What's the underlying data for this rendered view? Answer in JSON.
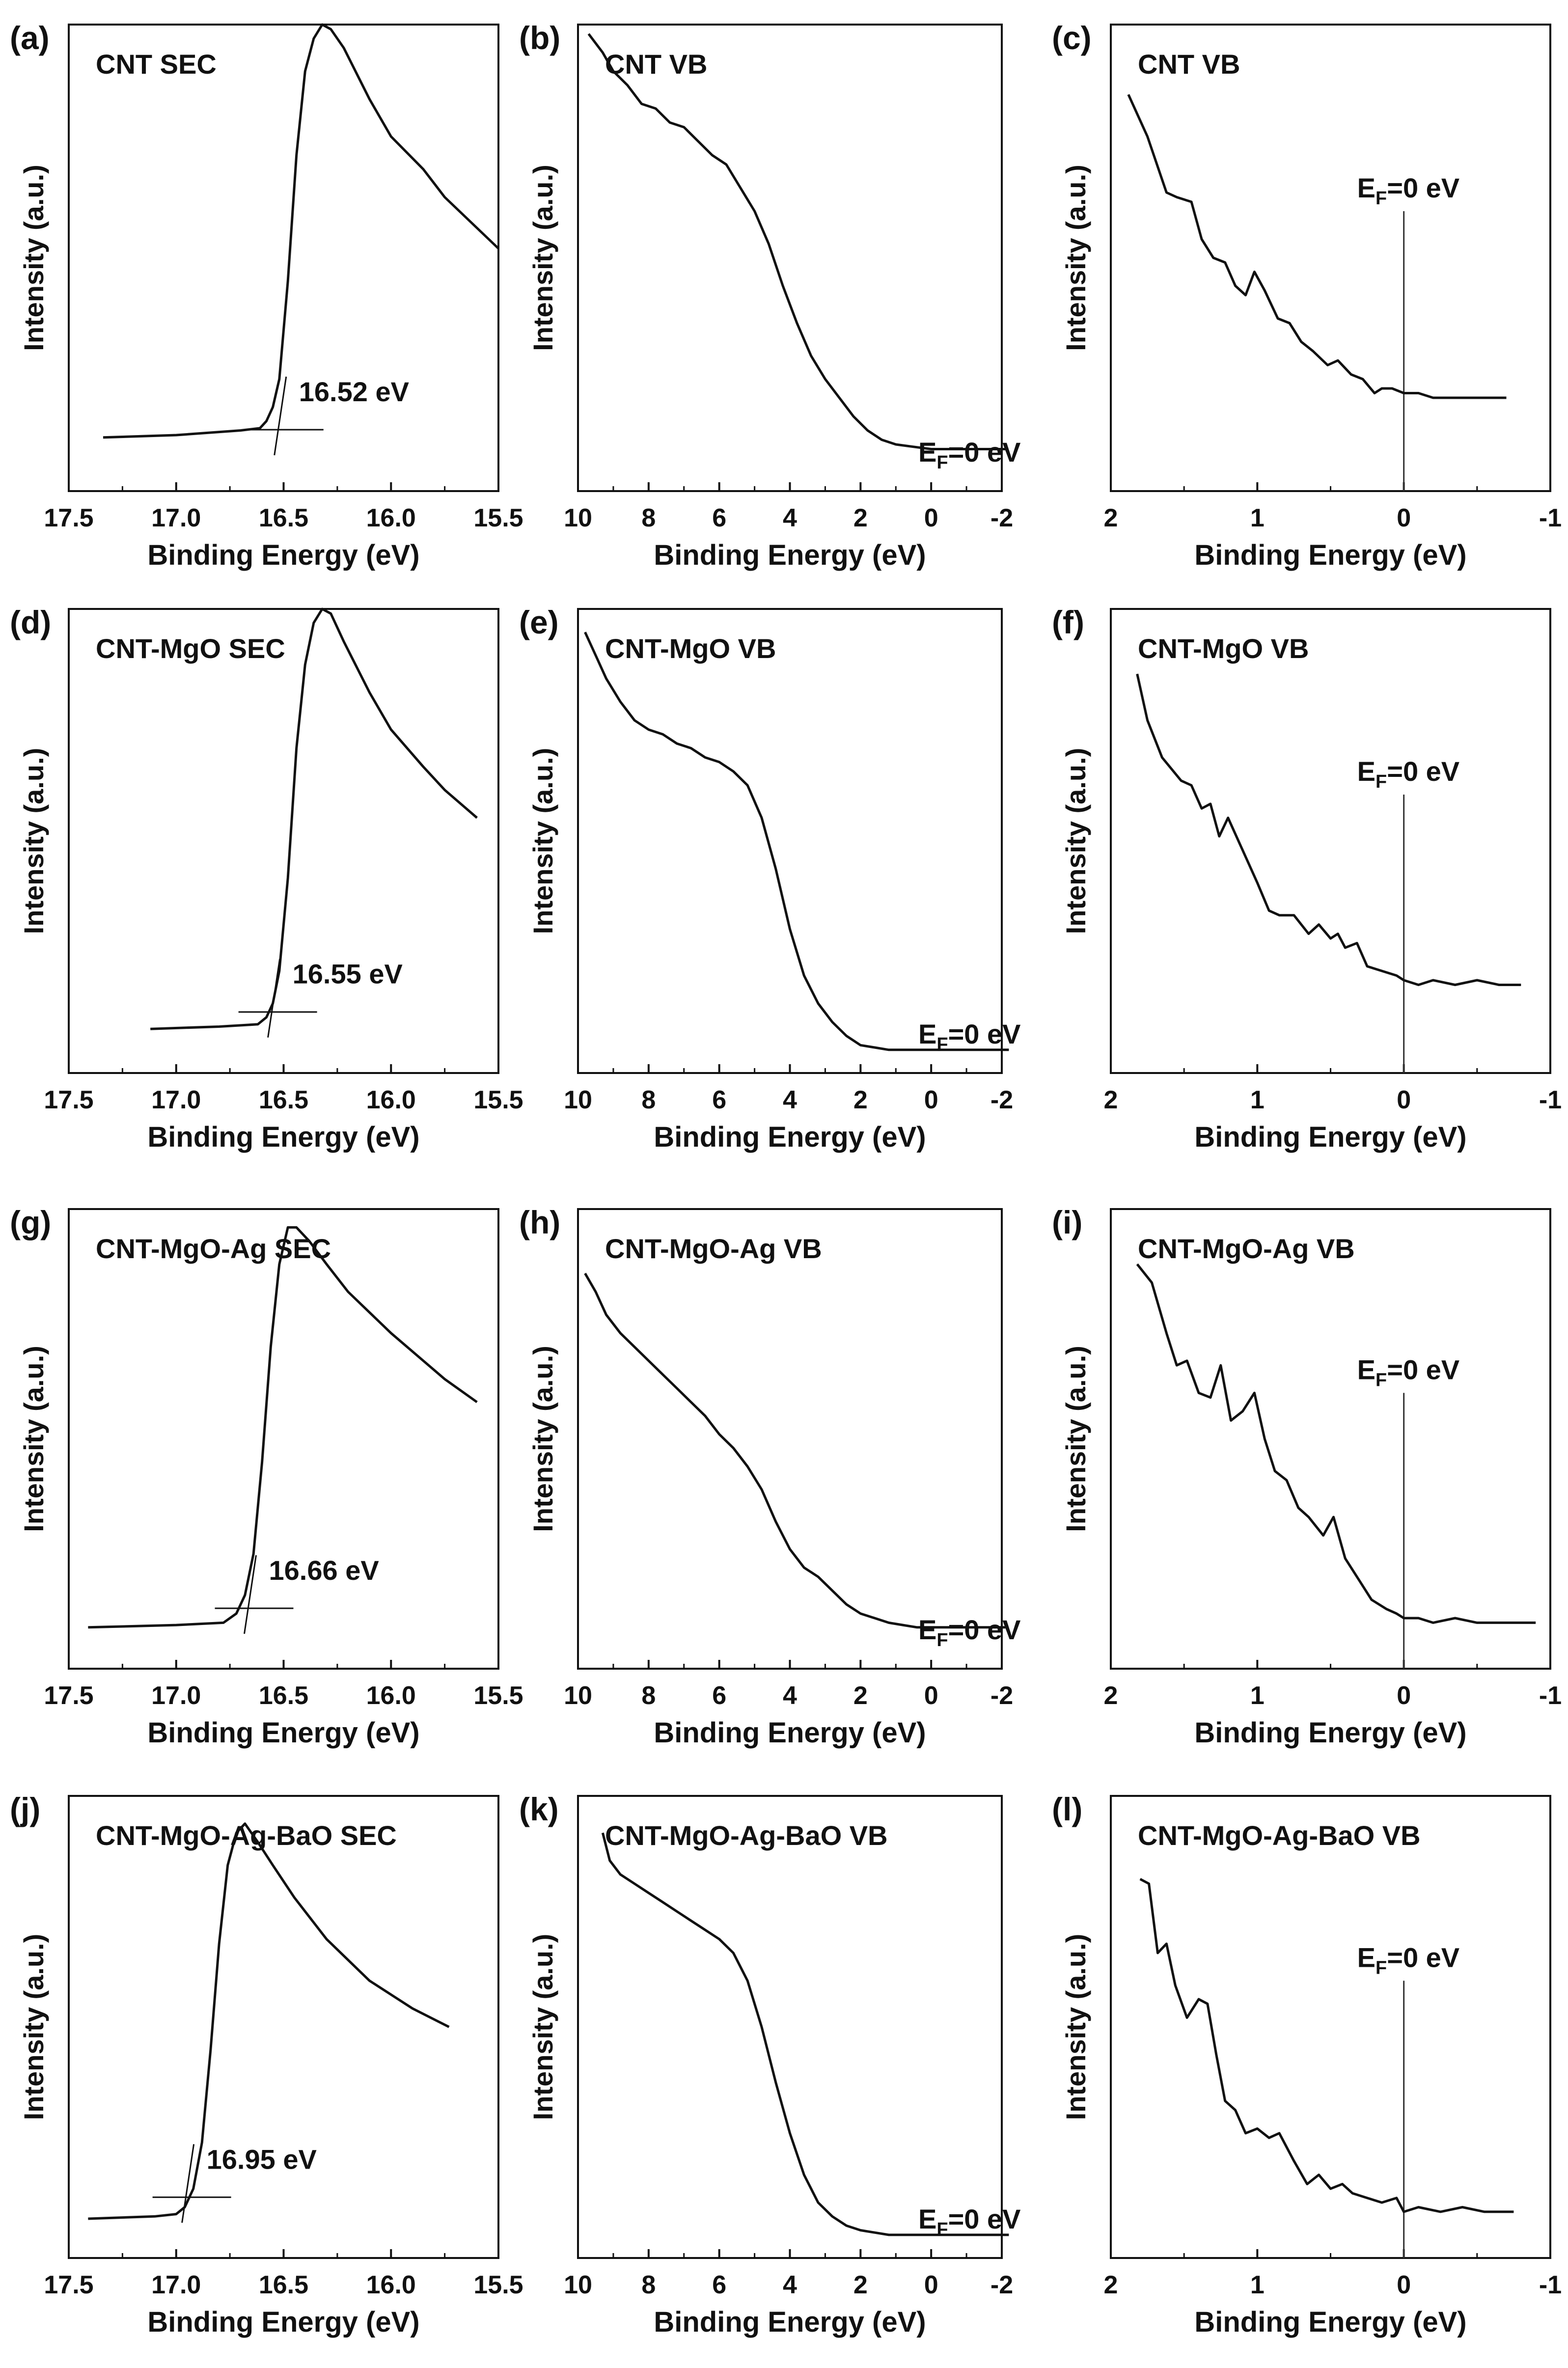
{
  "figure": {
    "ylabel_common": "Intensity (a.u.)"
  },
  "chart_data": [
    {
      "id": "a",
      "panel_label": "(a)",
      "type": "line",
      "title": "CNT SEC",
      "xlabel": "Binding Energy (eV)",
      "ylabel": "Intensity (a.u.)",
      "xlim": [
        17.5,
        15.5
      ],
      "ylim": [
        0,
        100
      ],
      "xticks": [
        "17.5",
        "17.0",
        "16.5",
        "16.0",
        "15.5"
      ],
      "xtick_values": [
        17.5,
        17.0,
        16.5,
        16.0,
        15.5
      ],
      "series": [
        {
          "name": "CNT SEC",
          "x": [
            17.34,
            17.0,
            16.7,
            16.61,
            16.58,
            16.55,
            16.52,
            16.48,
            16.44,
            16.4,
            16.36,
            16.32,
            16.28,
            16.22,
            16.1,
            16.0,
            15.85,
            15.75,
            15.5
          ],
          "y": [
            11.5,
            12,
            13,
            13.5,
            15,
            18,
            24,
            45,
            72,
            90,
            97,
            100,
            99,
            95,
            84,
            76,
            69,
            63,
            52
          ]
        }
      ],
      "annotation": {
        "text": "16.52 eV",
        "x": 16.52
      }
    },
    {
      "id": "b",
      "panel_label": "(b)",
      "type": "line",
      "title": "CNT VB",
      "xlabel": "Binding Energy (eV)",
      "ylabel": "Intensity (a.u.)",
      "xlim": [
        10,
        -2
      ],
      "ylim": [
        0,
        100
      ],
      "xticks": [
        "10",
        "8",
        "6",
        "4",
        "2",
        "0",
        "-2"
      ],
      "xtick_values": [
        10,
        8,
        6,
        4,
        2,
        0,
        -2
      ],
      "series": [
        {
          "name": "CNT VB",
          "x": [
            9.7,
            9.3,
            9.0,
            8.6,
            8.2,
            7.8,
            7.4,
            7.0,
            6.6,
            6.2,
            5.8,
            5.4,
            5.0,
            4.6,
            4.2,
            3.8,
            3.4,
            3.0,
            2.6,
            2.2,
            1.8,
            1.4,
            1.0,
            0.5,
            0,
            -0.5,
            -1.0,
            -1.5,
            -2.1
          ],
          "y": [
            98,
            94,
            90,
            87,
            83,
            82,
            79,
            78,
            75,
            72,
            70,
            65,
            60,
            53,
            44,
            36,
            29,
            24,
            20,
            16,
            13,
            11,
            10,
            9.5,
            9,
            9,
            9,
            9,
            9
          ]
        }
      ],
      "annotation": {
        "text": "EF=0 eV",
        "main": "E",
        "sub": "F",
        "rest": "=0 eV"
      }
    },
    {
      "id": "c",
      "panel_label": "(c)",
      "type": "line",
      "title": "CNT VB",
      "xlabel": "Binding Energy (eV)",
      "ylabel": "Intensity (a.u.)",
      "xlim": [
        2,
        -1
      ],
      "ylim": [
        0,
        100
      ],
      "xticks": [
        "2",
        "1",
        "0",
        "-1"
      ],
      "xtick_values": [
        2,
        1,
        0,
        -1
      ],
      "series": [
        {
          "name": "CNT VB",
          "x": [
            1.88,
            1.75,
            1.62,
            1.55,
            1.45,
            1.38,
            1.3,
            1.22,
            1.15,
            1.08,
            1.02,
            0.95,
            0.86,
            0.78,
            0.7,
            0.62,
            0.52,
            0.45,
            0.36,
            0.28,
            0.2,
            0.15,
            0.08,
            0.0,
            -0.1,
            -0.2,
            -0.35,
            -0.5,
            -0.6,
            -0.7
          ],
          "y": [
            85,
            76,
            64,
            63,
            62,
            54,
            50,
            49,
            44,
            42,
            47,
            43,
            37,
            36,
            32,
            30,
            27,
            28,
            25,
            24,
            21,
            22,
            22,
            21,
            21,
            20,
            20,
            20,
            20,
            20
          ]
        }
      ],
      "annotation": {
        "text": "EF=0 eV",
        "main": "E",
        "sub": "F",
        "rest": "=0 eV"
      }
    },
    {
      "id": "d",
      "panel_label": "(d)",
      "type": "line",
      "title": "CNT-MgO SEC",
      "xlabel": "Binding Energy (eV)",
      "ylabel": "Intensity (a.u.)",
      "xlim": [
        17.5,
        15.5
      ],
      "ylim": [
        0,
        100
      ],
      "xticks": [
        "17.5",
        "17.0",
        "16.5",
        "16.0",
        "15.5"
      ],
      "xtick_values": [
        17.5,
        17.0,
        16.5,
        16.0,
        15.5
      ],
      "series": [
        {
          "name": "CNT-MgO SEC",
          "x": [
            17.12,
            16.8,
            16.62,
            16.58,
            16.55,
            16.52,
            16.48,
            16.44,
            16.4,
            16.36,
            16.32,
            16.28,
            16.22,
            16.1,
            16.0,
            15.85,
            15.75,
            15.6
          ],
          "y": [
            9.5,
            10,
            10.5,
            12,
            15,
            22,
            42,
            70,
            88,
            97,
            100,
            99,
            93,
            82,
            74,
            66,
            61,
            55
          ]
        }
      ],
      "annotation": {
        "text": "16.55 eV",
        "x": 16.55
      }
    },
    {
      "id": "e",
      "panel_label": "(e)",
      "type": "line",
      "title": "CNT-MgO VB",
      "xlabel": "Binding Energy (eV)",
      "ylabel": "Intensity (a.u.)",
      "xlim": [
        10,
        -2
      ],
      "ylim": [
        0,
        100
      ],
      "xticks": [
        "10",
        "8",
        "6",
        "4",
        "2",
        "0",
        "-2"
      ],
      "xtick_values": [
        10,
        8,
        6,
        4,
        2,
        0,
        -2
      ],
      "series": [
        {
          "name": "CNT-MgO VB",
          "x": [
            9.8,
            9.5,
            9.2,
            8.8,
            8.4,
            8.0,
            7.6,
            7.2,
            6.8,
            6.4,
            6.0,
            5.6,
            5.2,
            4.8,
            4.4,
            4.0,
            3.6,
            3.2,
            2.8,
            2.4,
            2.0,
            1.6,
            1.2,
            0.8,
            0.4,
            0,
            -0.5,
            -1.0,
            -1.5,
            -2.2
          ],
          "y": [
            95,
            90,
            85,
            80,
            76,
            74,
            73,
            71,
            70,
            68,
            67,
            65,
            62,
            55,
            44,
            31,
            21,
            15,
            11,
            8,
            6,
            5.5,
            5,
            5,
            5,
            5,
            5,
            5,
            5,
            5
          ]
        }
      ],
      "annotation": {
        "text": "EF=0 eV",
        "main": "E",
        "sub": "F",
        "rest": "=0 eV"
      }
    },
    {
      "id": "f",
      "panel_label": "(f)",
      "type": "line",
      "title": "CNT-MgO VB",
      "xlabel": "Binding Energy (eV)",
      "ylabel": "Intensity (a.u.)",
      "xlim": [
        2,
        -1
      ],
      "ylim": [
        0,
        100
      ],
      "xticks": [
        "2",
        "1",
        "0",
        "-1"
      ],
      "xtick_values": [
        2,
        1,
        0,
        -1
      ],
      "series": [
        {
          "name": "CNT-MgO VB",
          "x": [
            1.82,
            1.75,
            1.65,
            1.52,
            1.45,
            1.38,
            1.32,
            1.26,
            1.2,
            1.1,
            1.0,
            0.92,
            0.85,
            0.75,
            0.65,
            0.58,
            0.5,
            0.45,
            0.4,
            0.32,
            0.25,
            0.15,
            0.05,
            0.0,
            -0.1,
            -0.2,
            -0.35,
            -0.5,
            -0.65,
            -0.8
          ],
          "y": [
            86,
            76,
            68,
            63,
            62,
            57,
            58,
            51,
            55,
            48,
            41,
            35,
            34,
            34,
            30,
            32,
            29,
            30,
            27,
            28,
            23,
            22,
            21,
            20,
            19,
            20,
            19,
            20,
            19,
            19
          ]
        }
      ],
      "annotation": {
        "text": "EF=0 eV",
        "main": "E",
        "sub": "F",
        "rest": "=0 eV"
      }
    },
    {
      "id": "g",
      "panel_label": "(g)",
      "type": "line",
      "title": "CNT-MgO-Ag SEC",
      "xlabel": "Binding Energy (eV)",
      "ylabel": "Intensity (a.u.)",
      "xlim": [
        17.5,
        15.5
      ],
      "ylim": [
        0,
        100
      ],
      "xticks": [
        "17.5",
        "17.0",
        "16.5",
        "16.0",
        "15.5"
      ],
      "xtick_values": [
        17.5,
        17.0,
        16.5,
        16.0,
        15.5
      ],
      "series": [
        {
          "name": "CNT-MgO-Ag SEC",
          "x": [
            17.41,
            17.0,
            16.78,
            16.72,
            16.68,
            16.64,
            16.6,
            16.56,
            16.52,
            16.48,
            16.44,
            16.38,
            16.3,
            16.2,
            16.0,
            15.85,
            15.75,
            15.6
          ],
          "y": [
            9,
            9.5,
            10,
            12,
            16,
            25,
            45,
            70,
            88,
            96,
            96,
            93,
            88,
            82,
            73,
            67,
            63,
            58
          ]
        }
      ],
      "annotation": {
        "text": "16.66 eV",
        "x": 16.66
      }
    },
    {
      "id": "h",
      "panel_label": "(h)",
      "type": "line",
      "title": "CNT-MgO-Ag VB",
      "xlabel": "Binding Energy (eV)",
      "ylabel": "Intensity (a.u.)",
      "xlim": [
        10,
        -2
      ],
      "ylim": [
        0,
        100
      ],
      "xticks": [
        "10",
        "8",
        "6",
        "4",
        "2",
        "0",
        "-2"
      ],
      "xtick_values": [
        10,
        8,
        6,
        4,
        2,
        0,
        -2
      ],
      "series": [
        {
          "name": "CNT-MgO-Ag VB",
          "x": [
            9.8,
            9.5,
            9.2,
            8.8,
            8.4,
            8.0,
            7.6,
            7.2,
            6.8,
            6.4,
            6.0,
            5.6,
            5.2,
            4.8,
            4.4,
            4.0,
            3.6,
            3.2,
            2.8,
            2.4,
            2.0,
            1.6,
            1.2,
            0.8,
            0.4,
            0,
            -0.5,
            -1.0,
            -1.5,
            -2.1
          ],
          "y": [
            86,
            82,
            77,
            73,
            70,
            67,
            64,
            61,
            58,
            55,
            51,
            48,
            44,
            39,
            32,
            26,
            22,
            20,
            17,
            14,
            12,
            11,
            10,
            9.5,
            9,
            9,
            9,
            9,
            9,
            9
          ]
        }
      ],
      "annotation": {
        "text": "EF=0 eV",
        "main": "E",
        "sub": "F",
        "rest": "=0 eV"
      }
    },
    {
      "id": "i",
      "panel_label": "(i)",
      "type": "line",
      "title": "CNT-MgO-Ag VB",
      "xlabel": "Binding Energy (eV)",
      "ylabel": "Intensity (a.u.)",
      "xlim": [
        2,
        -1
      ],
      "ylim": [
        0,
        100
      ],
      "xticks": [
        "2",
        "1",
        "0",
        "-1"
      ],
      "xtick_values": [
        2,
        1,
        0,
        -1
      ],
      "series": [
        {
          "name": "CNT-MgO-Ag VB",
          "x": [
            1.82,
            1.72,
            1.62,
            1.55,
            1.48,
            1.4,
            1.32,
            1.25,
            1.18,
            1.1,
            1.02,
            0.95,
            0.88,
            0.8,
            0.72,
            0.65,
            0.55,
            0.48,
            0.4,
            0.3,
            0.22,
            0.12,
            0.05,
            0.0,
            -0.1,
            -0.2,
            -0.35,
            -0.5,
            -0.7,
            -0.9
          ],
          "y": [
            88,
            84,
            73,
            66,
            67,
            60,
            59,
            66,
            54,
            56,
            60,
            50,
            43,
            41,
            35,
            33,
            29,
            33,
            24,
            19,
            15,
            13,
            12,
            11,
            11,
            10,
            11,
            10,
            10,
            10
          ]
        }
      ],
      "annotation": {
        "text": "EF=0 eV",
        "main": "E",
        "sub": "F",
        "rest": "=0 eV"
      }
    },
    {
      "id": "j",
      "panel_label": "(j)",
      "type": "line",
      "title": "CNT-MgO-Ag-BaO SEC",
      "xlabel": "Binding Energy (eV)",
      "ylabel": "Intensity (a.u.)",
      "xlim": [
        17.5,
        15.5
      ],
      "ylim": [
        0,
        100
      ],
      "xticks": [
        "17.5",
        "17.0",
        "16.5",
        "16.0",
        "15.5"
      ],
      "xtick_values": [
        17.5,
        17.0,
        16.5,
        16.0,
        15.5
      ],
      "series": [
        {
          "name": "CNT-MgO-Ag-BaO SEC",
          "x": [
            17.41,
            17.1,
            17.0,
            16.96,
            16.92,
            16.88,
            16.84,
            16.8,
            16.76,
            16.72,
            16.68,
            16.62,
            16.55,
            16.45,
            16.3,
            16.1,
            15.9,
            15.73
          ],
          "y": [
            8.5,
            9,
            9.5,
            11,
            15,
            25,
            45,
            68,
            85,
            92,
            94,
            90,
            85,
            78,
            69,
            60,
            54,
            50
          ]
        }
      ],
      "annotation": {
        "text": "16.95 eV",
        "x": 16.95
      }
    },
    {
      "id": "k",
      "panel_label": "(k)",
      "type": "line",
      "title": "CNT-MgO-Ag-BaO VB",
      "xlabel": "Binding Energy (eV)",
      "ylabel": "Intensity (a.u.)",
      "xlim": [
        10,
        -2
      ],
      "ylim": [
        0,
        100
      ],
      "xticks": [
        "10",
        "8",
        "6",
        "4",
        "2",
        "0",
        "-2"
      ],
      "xtick_values": [
        10,
        8,
        6,
        4,
        2,
        0,
        -2
      ],
      "series": [
        {
          "name": "CNT-MgO-Ag-BaO VB",
          "x": [
            9.3,
            9.1,
            8.8,
            8.4,
            8.0,
            7.6,
            7.2,
            6.8,
            6.4,
            6.0,
            5.6,
            5.2,
            4.8,
            4.4,
            4.0,
            3.6,
            3.2,
            2.8,
            2.4,
            2.0,
            1.6,
            1.2,
            0.8,
            0.4,
            0,
            -0.5,
            -1.0,
            -1.5,
            -2.2
          ],
          "y": [
            92,
            86,
            83,
            81,
            79,
            77,
            75,
            73,
            71,
            69,
            66,
            60,
            50,
            38,
            27,
            18,
            12,
            9,
            7,
            6,
            5.5,
            5,
            5,
            5,
            5,
            5,
            5,
            5,
            5
          ]
        }
      ],
      "annotation": {
        "text": "EF=0 eV",
        "main": "E",
        "sub": "F",
        "rest": "=0 eV"
      }
    },
    {
      "id": "l",
      "panel_label": "(l)",
      "type": "line",
      "title": "CNT-MgO-Ag-BaO VB",
      "xlabel": "Binding Energy (eV)",
      "ylabel": "Intensity (a.u.)",
      "xlim": [
        2,
        -1
      ],
      "ylim": [
        0,
        100
      ],
      "xticks": [
        "2",
        "1",
        "0",
        "-1"
      ],
      "xtick_values": [
        2,
        1,
        0,
        -1
      ],
      "series": [
        {
          "name": "CNT-MgO-Ag-BaO VB",
          "x": [
            1.8,
            1.74,
            1.68,
            1.62,
            1.56,
            1.48,
            1.4,
            1.34,
            1.28,
            1.22,
            1.15,
            1.08,
            1.0,
            0.92,
            0.85,
            0.75,
            0.66,
            0.58,
            0.5,
            0.42,
            0.35,
            0.25,
            0.15,
            0.05,
            0.0,
            -0.1,
            -0.25,
            -0.4,
            -0.55,
            -0.75
          ],
          "y": [
            82,
            81,
            66,
            68,
            59,
            52,
            56,
            55,
            44,
            34,
            32,
            27,
            28,
            26,
            27,
            21,
            16,
            18,
            15,
            16,
            14,
            13,
            12,
            13,
            10,
            11,
            10,
            11,
            10,
            10
          ]
        }
      ],
      "annotation": {
        "text": "EF=0 eV",
        "main": "E",
        "sub": "F",
        "rest": "=0 eV"
      }
    }
  ]
}
